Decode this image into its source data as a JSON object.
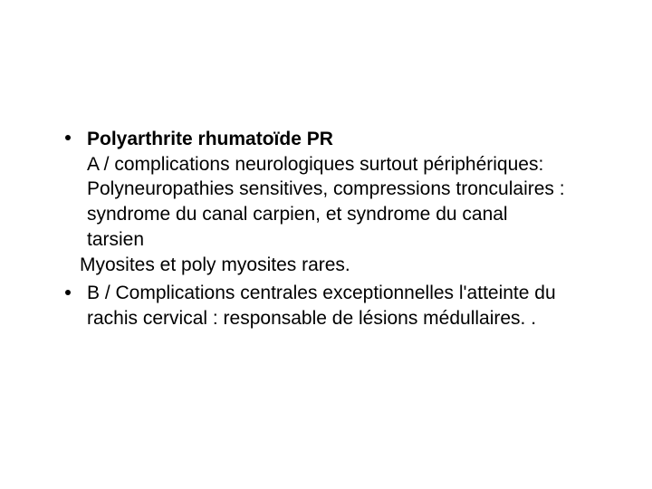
{
  "background_color": "#ffffff",
  "text_color": "#000000",
  "font_family": "Arial",
  "font_size_pt": 16,
  "line_height": 1.32,
  "bullet_color": "#000000",
  "items": [
    {
      "title": "Polyarthrite rhumatoïde  PR",
      "lines": [
        "A / complications neurologiques surtout périphériques:",
        "Polyneuropathies sensitives, compressions tronculaires :",
        "syndrome du canal carpien, et syndrome du canal",
        "tarsien"
      ],
      "trailing": "Myosites et poly myosites rares."
    },
    {
      "lines": [
        "B / Complications centrales exceptionnelles  l'atteinte du",
        "rachis cervical : responsable de lésions médullaires. ."
      ]
    }
  ]
}
